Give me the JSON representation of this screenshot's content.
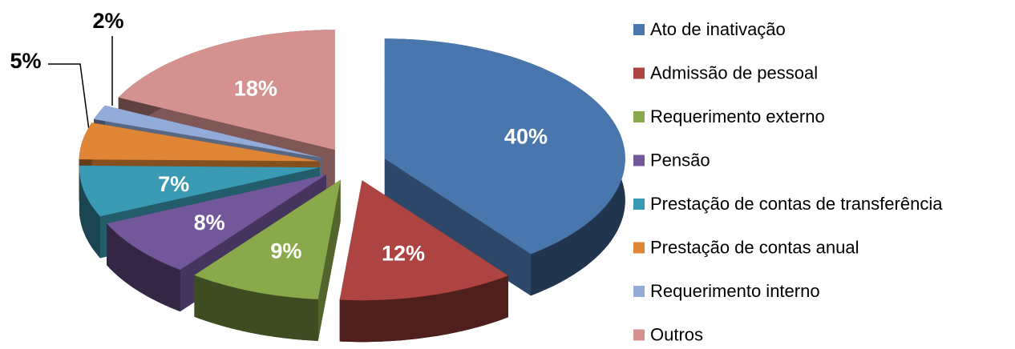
{
  "chart_data": {
    "type": "pie3d",
    "categories": [
      "Ato de inativação",
      "Admissão de pessoal",
      "Requerimento externo",
      "Pensão",
      "Prestação de contas de transferência",
      "Prestação de contas anual",
      "Requerimento interno",
      "Outros"
    ],
    "values": [
      40,
      12,
      9,
      8,
      7,
      5,
      2,
      18
    ],
    "value_labels": [
      "40%",
      "12%",
      "9%",
      "8%",
      "7%",
      "5%",
      "2%",
      "18%"
    ],
    "colors": [
      "#4a76ae",
      "#ae4441",
      "#89a94a",
      "#73579b",
      "#3b9ab3",
      "#de8536",
      "#93abd9",
      "#d4918f"
    ],
    "legend": "right"
  }
}
